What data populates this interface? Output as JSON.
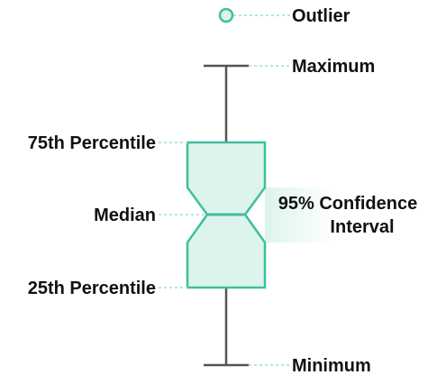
{
  "labels": {
    "outlier": "Outlier",
    "maximum": "Maximum",
    "q3": "75th Percentile",
    "median": "Median",
    "ci_line1": "95% Confidence",
    "ci_line2": "Interval",
    "q1": "25th Percentile",
    "minimum": "Minimum"
  },
  "colors": {
    "box_stroke": "#3dbf9f",
    "box_fill": "#dcf4ec",
    "whisker": "#555555",
    "leader": "#b8e6d8",
    "text": "#111111"
  }
}
